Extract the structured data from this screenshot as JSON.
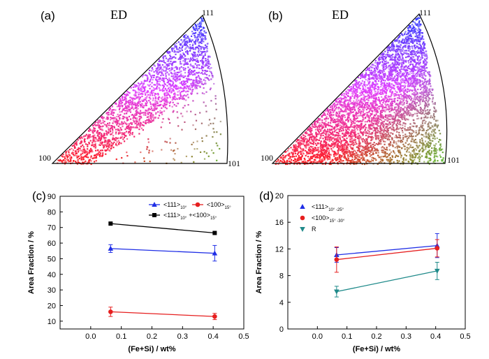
{
  "ipf_panels": [
    {
      "label": "(a)",
      "ed": "ED",
      "corners": {
        "top": "111",
        "left": "100",
        "right": "101"
      },
      "colors": {
        "red": "#ff1e1e",
        "magenta": "#e040ff",
        "blue": "#2a3cff",
        "green": "#38e038"
      }
    },
    {
      "label": "(b)",
      "ed": "ED",
      "corners": {
        "top": "111",
        "left": "100",
        "right": "101"
      },
      "colors": {
        "red": "#ff1e1e",
        "magenta": "#e040ff",
        "blue": "#2a3cff",
        "green": "#38e038"
      }
    }
  ],
  "chart_data": [
    {
      "panel": "(c)",
      "type": "line",
      "xlabel": "(Fe+Si) / wt%",
      "ylabel": "Area Fraction / %",
      "xlim": [
        -0.1,
        0.5
      ],
      "ylim": [
        5,
        90
      ],
      "xticks": [
        -0.1,
        0.0,
        0.1,
        0.2,
        0.3,
        0.4,
        0.5
      ],
      "xtick_labels": [
        "",
        "0.0",
        "0.1",
        "0.2",
        "0.3",
        "0.4",
        "0.5"
      ],
      "yticks": [
        10,
        20,
        30,
        40,
        50,
        60,
        70,
        80,
        90
      ],
      "ytick_labels": [
        "10",
        "20",
        "30",
        "40",
        "50",
        "60",
        "70",
        "80",
        "90"
      ],
      "legend_position": "top-right",
      "series": [
        {
          "name": "<111>",
          "sub": "10°",
          "color": "#1f2ee6",
          "marker": "triangle-up",
          "x": [
            0.065,
            0.405
          ],
          "y": [
            56.5,
            53.5
          ],
          "err": [
            2.5,
            5
          ]
        },
        {
          "name": "<100>",
          "sub": "15°",
          "color": "#e61f1f",
          "marker": "circle",
          "x": [
            0.065,
            0.405
          ],
          "y": [
            16,
            13
          ],
          "err": [
            3,
            2
          ]
        },
        {
          "name": "<111>",
          "sub": "10°",
          "name2": "+<100>",
          "sub2": "15°",
          "color": "#000000",
          "marker": "square",
          "x": [
            0.065,
            0.405
          ],
          "y": [
            72.5,
            66.5
          ],
          "err": null
        }
      ]
    },
    {
      "panel": "(d)",
      "type": "line",
      "xlabel": "(Fe+Si) / wt%",
      "ylabel": "Area Fraction / %",
      "xlim": [
        -0.1,
        0.5
      ],
      "ylim": [
        0,
        20
      ],
      "xticks": [
        -0.1,
        0.0,
        0.1,
        0.2,
        0.3,
        0.4,
        0.5
      ],
      "xtick_labels": [
        "",
        "0.0",
        "0.1",
        "0.2",
        "0.3",
        "0.4",
        "0.5"
      ],
      "yticks": [
        0,
        4,
        8,
        12,
        16,
        20
      ],
      "ytick_labels": [
        "0",
        "4",
        "8",
        "12",
        "16",
        "20"
      ],
      "legend_position": "top-left",
      "series": [
        {
          "name": "<111>",
          "sub": "10° -25°",
          "color": "#1f2ee6",
          "marker": "triangle-up",
          "x": [
            0.065,
            0.405
          ],
          "y": [
            11.1,
            12.5
          ],
          "err": [
            1.1,
            1.8
          ]
        },
        {
          "name": "<100>",
          "sub": "15° -30°",
          "color": "#e61f1f",
          "marker": "circle",
          "x": [
            0.065,
            0.405
          ],
          "y": [
            10.4,
            12.1
          ],
          "err": [
            1.9,
            1.3
          ]
        },
        {
          "name": "R",
          "sub": "",
          "color": "#1f8a8a",
          "marker": "triangle-down",
          "x": [
            0.065,
            0.405
          ],
          "y": [
            5.6,
            8.7
          ],
          "err": [
            0.8,
            1.3
          ]
        }
      ]
    }
  ]
}
